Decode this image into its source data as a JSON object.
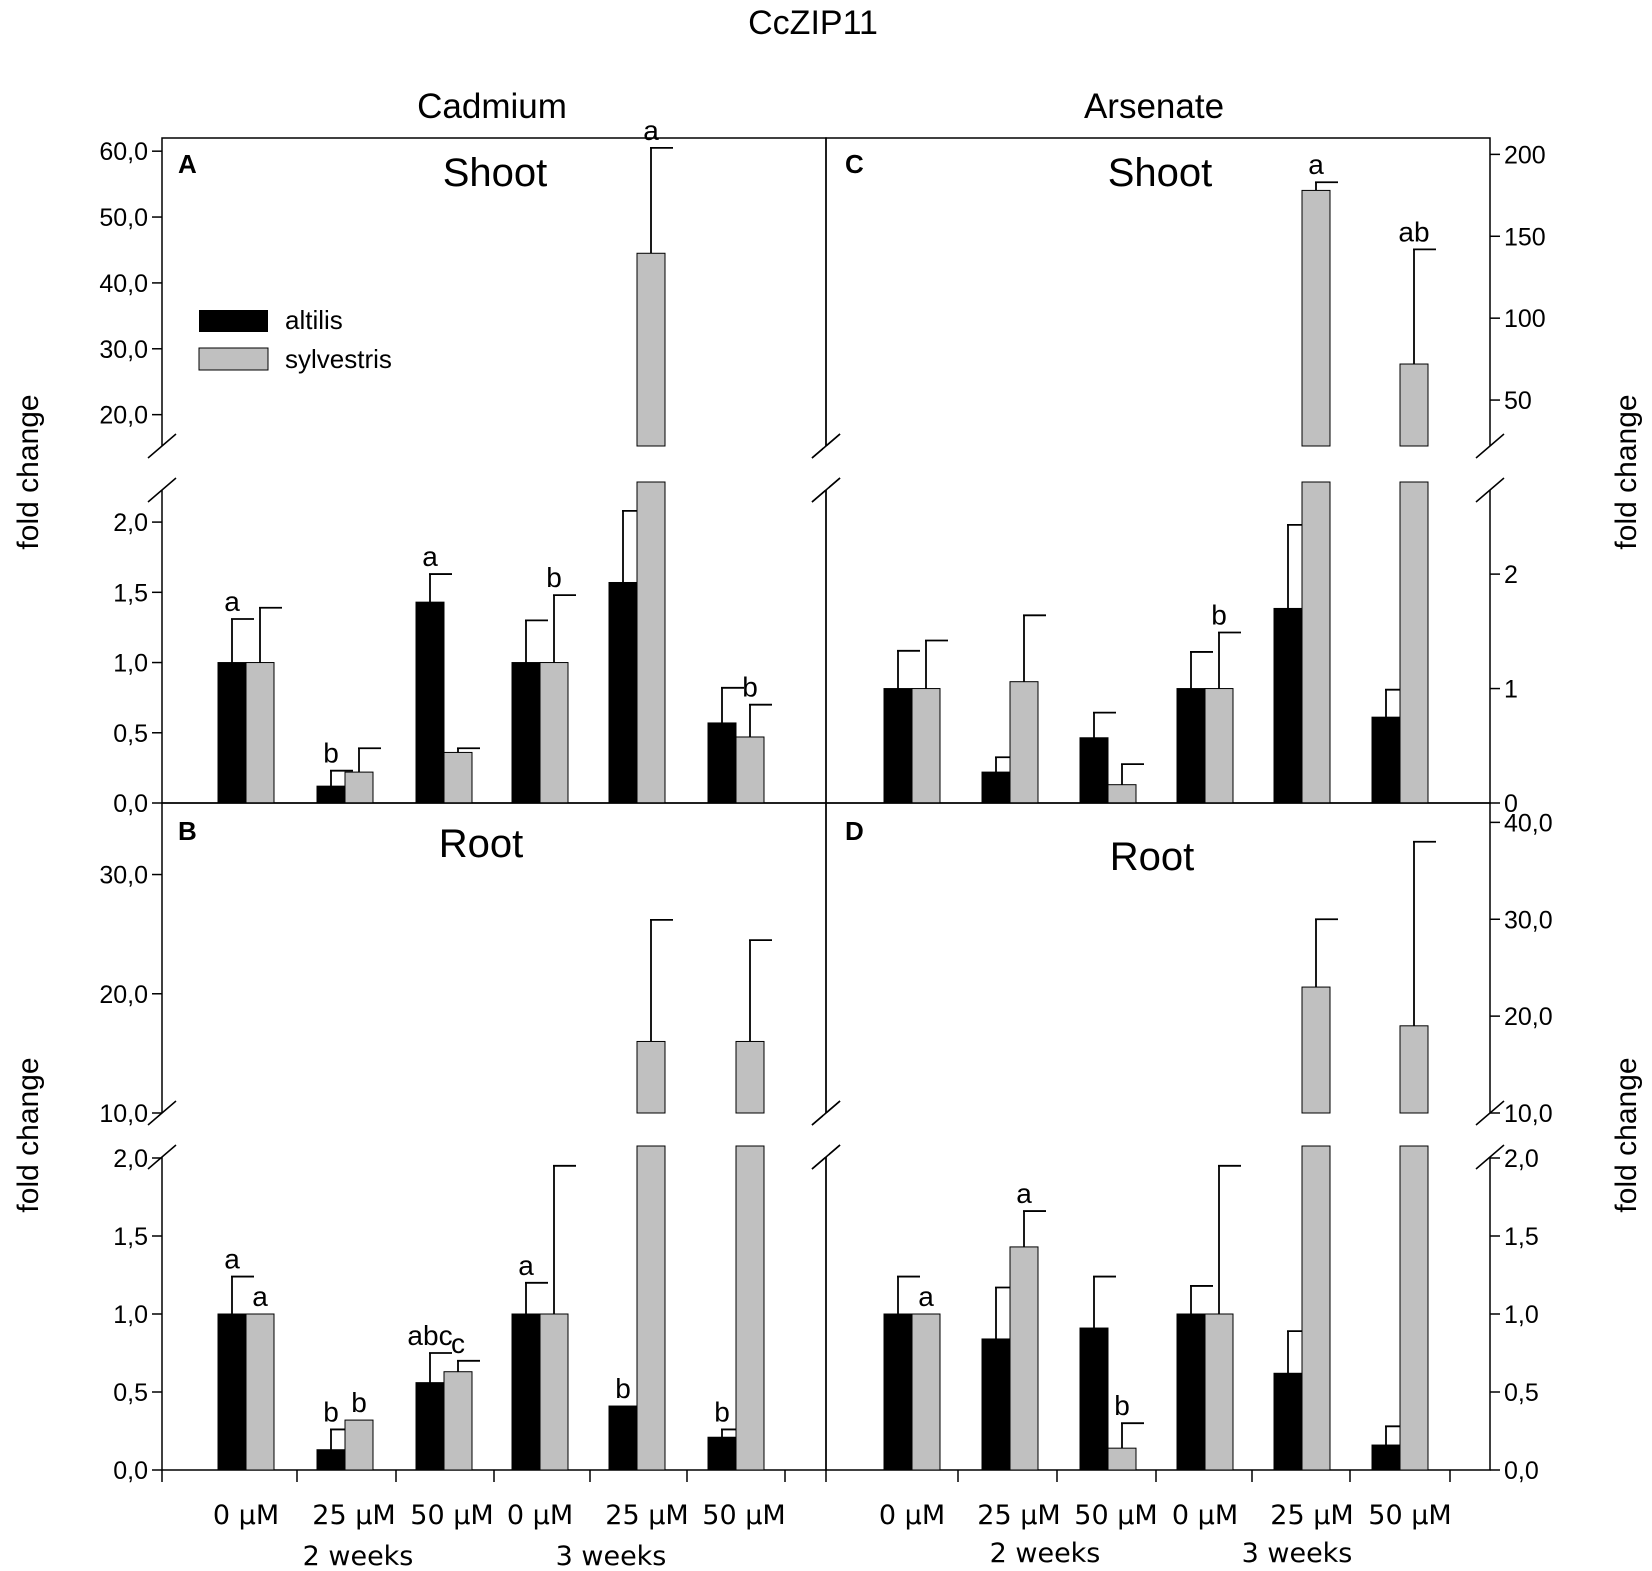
{
  "figure": {
    "title": "CcZIP11",
    "col_titles": [
      "Cadmium",
      "Arsenate"
    ],
    "ylabel": "fold change",
    "x_ticks": [
      "0 µM",
      "25 µM",
      "50 µM",
      "0 µM",
      "25 µM",
      "50 µM"
    ],
    "x_groups": [
      "2 weeks",
      "3 weeks"
    ],
    "legend": [
      {
        "name": "altilis",
        "color": "#000000"
      },
      {
        "name": "sylvestris",
        "color": "#c0c0c0"
      }
    ]
  },
  "chart_data": [
    {
      "type": "bar",
      "panel": "A",
      "title": "Shoot",
      "treatment": "Cadmium",
      "categories": [
        "0 µM 2w",
        "25 µM 2w",
        "50 µM 2w",
        "0 µM 3w",
        "25 µM 3w",
        "50 µM 3w"
      ],
      "broken_axis": {
        "lower": [
          0,
          2.2
        ],
        "upper": [
          16,
          62
        ]
      },
      "lower_ticks": [
        "0,0",
        "0,5",
        "1,0",
        "1,5",
        "2,0"
      ],
      "upper_ticks": [
        "20,0",
        "30,0",
        "40,0",
        "50,0",
        "60,0"
      ],
      "series": [
        {
          "name": "altilis",
          "values": [
            1.0,
            0.12,
            1.43,
            1.0,
            1.57,
            0.57
          ],
          "errors": [
            0.31,
            0.11,
            0.2,
            0.3,
            0.51,
            0.25
          ],
          "letters": [
            "a",
            "b",
            "a",
            "",
            "",
            ""
          ]
        },
        {
          "name": "sylvestris",
          "values": [
            1.0,
            0.22,
            0.36,
            1.0,
            44.5,
            0.47
          ],
          "errors": [
            0.39,
            0.17,
            0.03,
            0.48,
            16.0,
            0.23
          ],
          "letters": [
            "",
            "",
            "",
            "b",
            "a",
            "b"
          ]
        }
      ]
    },
    {
      "type": "bar",
      "panel": "B",
      "title": "Root",
      "treatment": "Cadmium",
      "categories": [
        "0 µM 2w",
        "25 µM 2w",
        "50 µM 2w",
        "0 µM 3w",
        "25 µM 3w",
        "50 µM 3w"
      ],
      "broken_axis": {
        "lower": [
          0,
          2.0
        ],
        "upper": [
          10,
          36
        ]
      },
      "lower_ticks": [
        "0,0",
        "0,5",
        "1,0",
        "1,5",
        "2,0"
      ],
      "upper_ticks": [
        "10,0",
        "20,0",
        "30,0"
      ],
      "series": [
        {
          "name": "altilis",
          "values": [
            1.0,
            0.13,
            0.56,
            1.0,
            0.41,
            0.21
          ],
          "errors": [
            0.24,
            0.13,
            0.19,
            0.2,
            0.0,
            0.05
          ],
          "letters": [
            "a",
            "b",
            "abc",
            "a",
            "b",
            "b"
          ]
        },
        {
          "name": "sylvestris",
          "values": [
            1.0,
            0.32,
            0.63,
            1.0,
            16.0,
            16.0
          ],
          "errors": [
            0.0,
            0.0,
            0.07,
            0.95,
            10.2,
            8.5
          ],
          "letters": [
            "a",
            "b",
            "c",
            "",
            "",
            ""
          ]
        }
      ]
    },
    {
      "type": "bar",
      "panel": "C",
      "title": "Shoot",
      "treatment": "Arsenate",
      "categories": [
        "0 µM 2w",
        "25 µM 2w",
        "50 µM 2w",
        "0 µM 3w",
        "25 µM 3w",
        "50 µM 3w"
      ],
      "broken_axis": {
        "lower": [
          0,
          2.7
        ],
        "upper": [
          25,
          210
        ]
      },
      "lower_ticks": [
        "0",
        "1",
        "2"
      ],
      "upper_ticks": [
        "50",
        "100",
        "150",
        "200"
      ],
      "series": [
        {
          "name": "altilis",
          "values": [
            1.0,
            0.27,
            0.57,
            1.0,
            1.7,
            0.75
          ],
          "errors": [
            0.33,
            0.13,
            0.22,
            0.32,
            0.73,
            0.24
          ],
          "letters": [
            "",
            "",
            "",
            "",
            "",
            ""
          ]
        },
        {
          "name": "sylvestris",
          "values": [
            1.0,
            1.06,
            0.16,
            1.0,
            178.0,
            72.0
          ],
          "errors": [
            0.42,
            0.58,
            0.18,
            0.49,
            5.0,
            70.0
          ],
          "letters": [
            "",
            "",
            "",
            "b",
            "a",
            "ab"
          ]
        }
      ]
    },
    {
      "type": "bar",
      "panel": "D",
      "title": "Root",
      "treatment": "Arsenate",
      "categories": [
        "0 µM 2w",
        "25 µM 2w",
        "50 µM 2w",
        "0 µM 3w",
        "25 µM 3w",
        "50 µM 3w"
      ],
      "broken_axis": {
        "lower": [
          0,
          2.0
        ],
        "upper": [
          10,
          42
        ]
      },
      "lower_ticks": [
        "0,0",
        "0,5",
        "1,0",
        "1,5",
        "2,0"
      ],
      "upper_ticks": [
        "10,0",
        "20,0",
        "30,0",
        "40,0"
      ],
      "series": [
        {
          "name": "altilis",
          "values": [
            1.0,
            0.84,
            0.91,
            1.0,
            0.62,
            0.16
          ],
          "errors": [
            0.24,
            0.33,
            0.33,
            0.18,
            0.27,
            0.12
          ],
          "letters": [
            "",
            "",
            "",
            "",
            "",
            ""
          ]
        },
        {
          "name": "sylvestris",
          "values": [
            1.0,
            1.43,
            0.14,
            1.0,
            23.0,
            19.0
          ],
          "errors": [
            0.0,
            0.23,
            0.16,
            0.95,
            7.0,
            19.0
          ],
          "letters": [
            "a",
            "a",
            "b",
            "",
            "",
            ""
          ]
        }
      ]
    }
  ]
}
